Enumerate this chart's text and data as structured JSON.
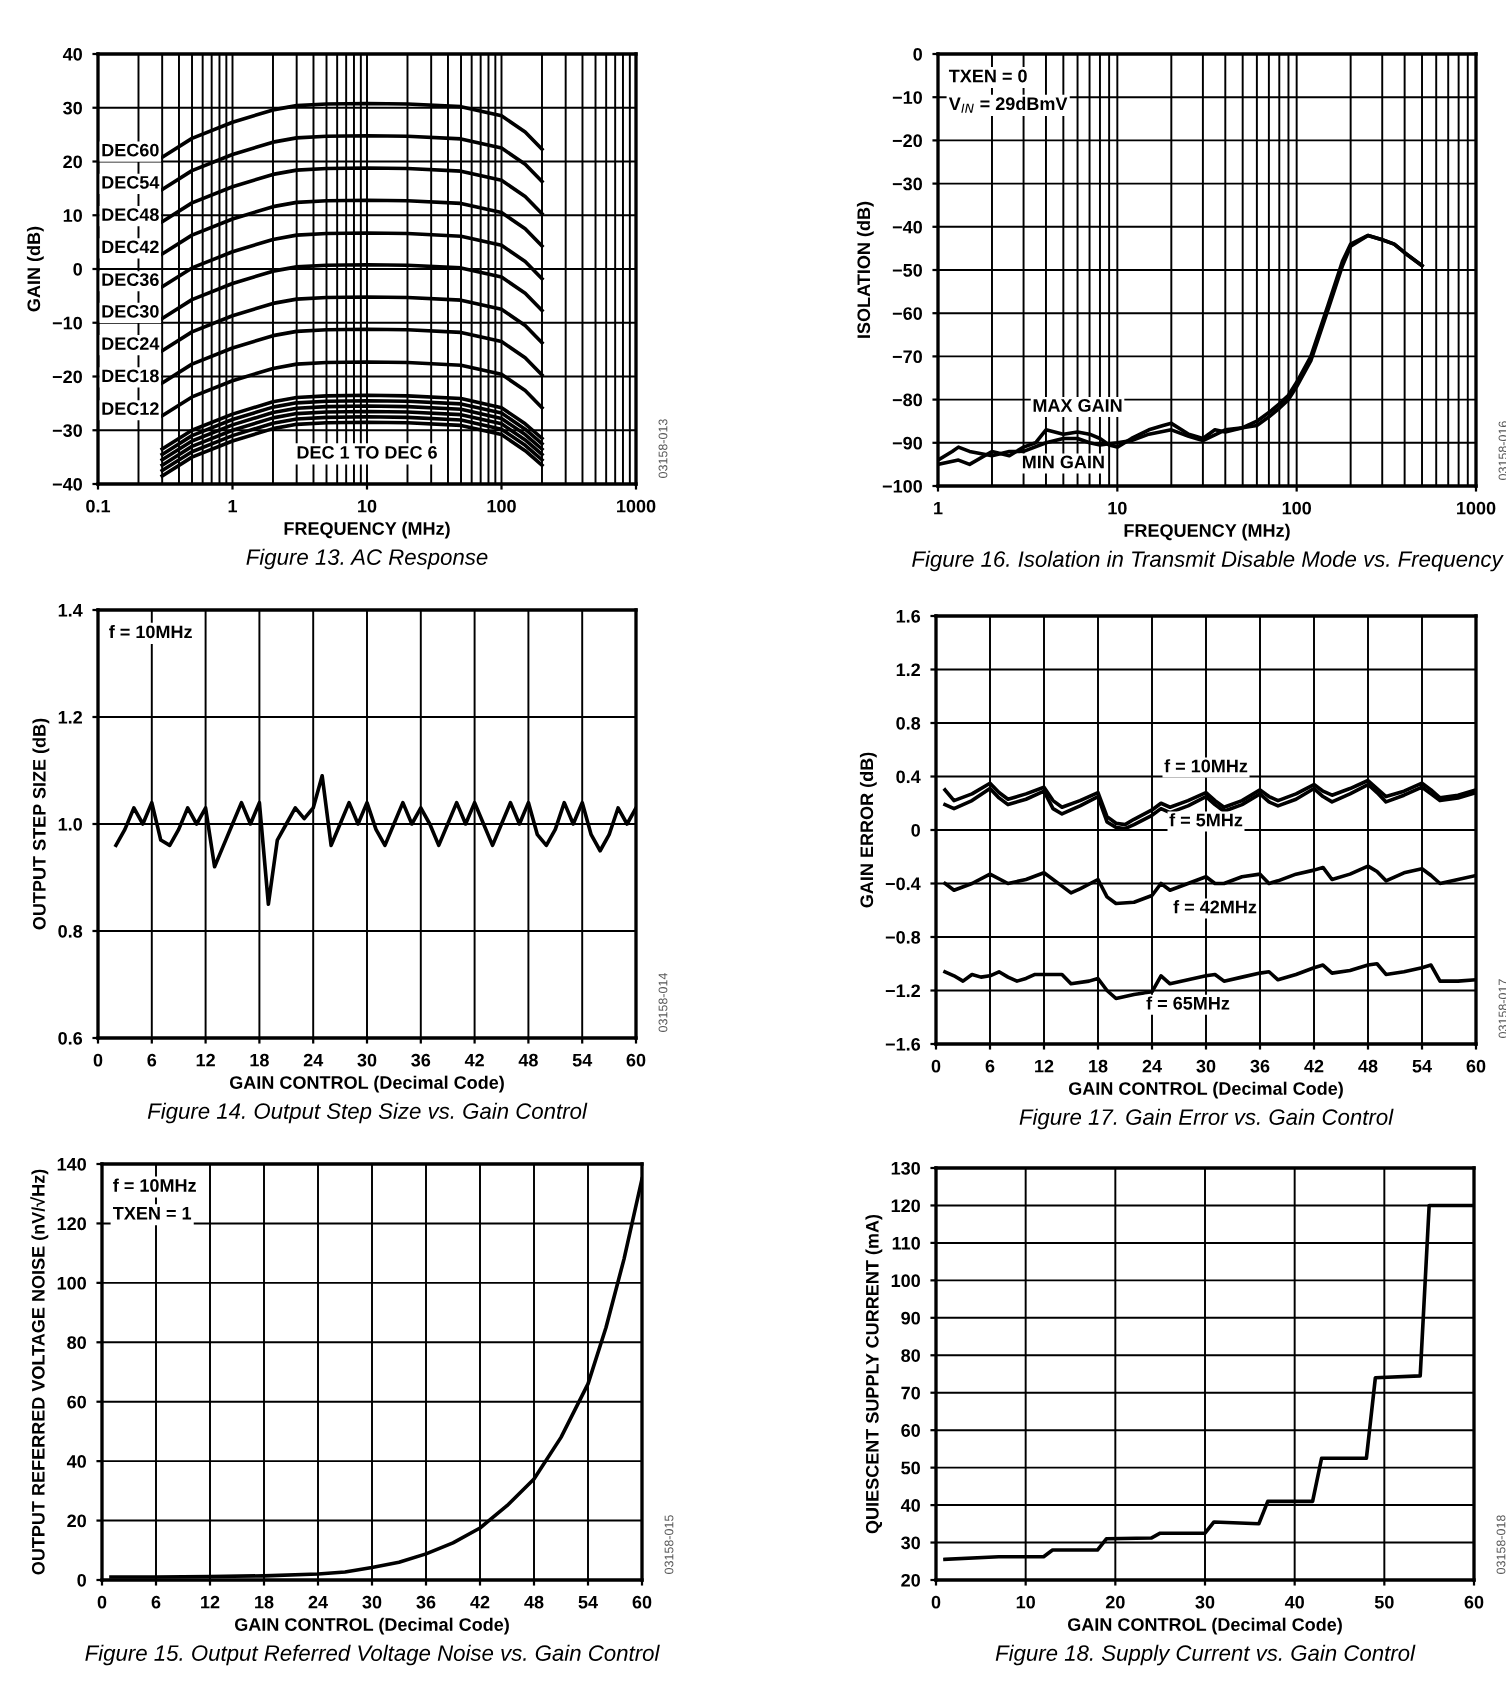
{
  "chart_data": [
    {
      "type": "line",
      "xlabel": "FREQUENCY (MHz)",
      "ylabel": "GAIN (dB)",
      "log": "x",
      "grid": true,
      "xlim": [
        0.1,
        1000
      ],
      "xticks": [
        0.1,
        1,
        10,
        100,
        1000
      ],
      "ylim": [
        -40,
        40
      ],
      "yticks": [
        {
          "value": -40,
          "label": "−40"
        },
        {
          "value": -30,
          "label": "−30"
        },
        {
          "value": -20,
          "label": "−20"
        },
        {
          "value": -10,
          "label": "−10"
        },
        0,
        10,
        20,
        30,
        40
      ],
      "x": [
        0.3,
        0.5,
        1,
        2,
        3,
        5,
        10,
        20,
        50,
        100,
        150,
        200
      ],
      "series": [
        {
          "name": "DEC60",
          "color": "#000000",
          "values": [
            20.8,
            24.3,
            27.3,
            29.6,
            30.4,
            30.7,
            30.8,
            30.7,
            30.2,
            28.5,
            25.5,
            22.3
          ]
        },
        {
          "name": "DEC54",
          "color": "#000000",
          "values": [
            14.8,
            18.3,
            21.3,
            23.6,
            24.4,
            24.7,
            24.8,
            24.7,
            24.2,
            22.5,
            19.5,
            16.3
          ]
        },
        {
          "name": "DEC48",
          "color": "#000000",
          "values": [
            8.8,
            12.3,
            15.3,
            17.6,
            18.4,
            18.7,
            18.8,
            18.7,
            18.2,
            16.5,
            13.5,
            10.3
          ]
        },
        {
          "name": "DEC42",
          "color": "#000000",
          "values": [
            2.8,
            6.3,
            9.3,
            11.6,
            12.4,
            12.7,
            12.8,
            12.7,
            12.2,
            10.5,
            7.5,
            4.3
          ]
        },
        {
          "name": "DEC36",
          "color": "#000000",
          "values": [
            -3.3,
            0.2,
            3.2,
            5.5,
            6.3,
            6.6,
            6.7,
            6.6,
            6.1,
            4.4,
            1.4,
            -1.8
          ]
        },
        {
          "name": "DEC30",
          "color": "#000000",
          "values": [
            -9.2,
            -5.7,
            -2.7,
            -0.4,
            0.4,
            0.7,
            0.8,
            0.7,
            0.2,
            -1.5,
            -4.5,
            -7.7
          ]
        },
        {
          "name": "DEC24",
          "color": "#000000",
          "values": [
            -15.2,
            -11.7,
            -8.7,
            -6.4,
            -5.6,
            -5.3,
            -5.2,
            -5.3,
            -5.8,
            -7.5,
            -10.5,
            -13.7
          ]
        },
        {
          "name": "DEC18",
          "color": "#000000",
          "values": [
            -21.2,
            -17.7,
            -14.7,
            -12.4,
            -11.6,
            -11.3,
            -11.2,
            -11.3,
            -11.8,
            -13.5,
            -16.5,
            -19.7
          ]
        },
        {
          "name": "DEC12",
          "color": "#000000",
          "values": [
            -27.3,
            -23.8,
            -20.8,
            -18.5,
            -17.7,
            -17.4,
            -17.3,
            -17.4,
            -17.9,
            -19.6,
            -22.6,
            -25.8
          ]
        },
        {
          "color": "#000000",
          "values": [
            -33.5,
            -30,
            -27,
            -24.7,
            -23.9,
            -23.6,
            -23.5,
            -23.6,
            -24.1,
            -25.8,
            -28.8,
            -31.5
          ]
        },
        {
          "color": "#000000",
          "values": [
            -34.5,
            -31,
            -28,
            -25.7,
            -24.9,
            -24.6,
            -24.5,
            -24.6,
            -25.1,
            -26.8,
            -29.8,
            -32.5
          ]
        },
        {
          "color": "#000000",
          "values": [
            -35.5,
            -32,
            -29,
            -26.7,
            -25.9,
            -25.6,
            -25.5,
            -25.6,
            -26.1,
            -27.8,
            -30.8,
            -33.5
          ]
        },
        {
          "color": "#000000",
          "values": [
            -36.5,
            -33,
            -30,
            -27.7,
            -26.9,
            -26.6,
            -26.5,
            -26.6,
            -27.1,
            -28.8,
            -31.8,
            -34.5
          ]
        },
        {
          "color": "#000000",
          "values": [
            -37.5,
            -34,
            -31,
            -28.7,
            -27.9,
            -27.6,
            -27.5,
            -27.6,
            -28.1,
            -29.8,
            -32.8,
            -35.5
          ]
        },
        {
          "color": "#000000",
          "values": [
            -38.5,
            -35,
            -32,
            -29.7,
            -28.9,
            -28.6,
            -28.5,
            -28.6,
            -29.1,
            -30.8,
            -33.8,
            -36.5
          ]
        }
      ],
      "annotations": [
        "DEC 1 TO DEC 6",
        "Figure 13. AC Response",
        "03158-013"
      ]
    },
    {
      "type": "line",
      "xlabel": "FREQUENCY (MHz)",
      "ylabel": "ISOLATION (dB)",
      "log": "x",
      "grid": true,
      "xlim": [
        1,
        1000
      ],
      "xticks": [
        1,
        10,
        100,
        1000
      ],
      "ylim": [
        -100,
        0
      ],
      "yticks": [
        {
          "value": -100,
          "label": "−100"
        },
        {
          "value": -90,
          "label": "−90"
        },
        {
          "value": -80,
          "label": "−80"
        },
        {
          "value": -70,
          "label": "−70"
        },
        {
          "value": -60,
          "label": "−60"
        },
        {
          "value": -50,
          "label": "−50"
        },
        {
          "value": -40,
          "label": "−40"
        },
        {
          "value": -30,
          "label": "−30"
        },
        {
          "value": -20,
          "label": "−20"
        },
        {
          "value": -10,
          "label": "−10"
        },
        0
      ],
      "series": [
        {
          "name": "MAX GAIN",
          "color": "#000000",
          "x": [
            1,
            1.3,
            1.5,
            2,
            2.5,
            3,
            3.5,
            4,
            5,
            6,
            7,
            8,
            9,
            10,
            12,
            15,
            18,
            20,
            25,
            30,
            35,
            40,
            50,
            60,
            70,
            80,
            90,
            100,
            120,
            150,
            180,
            200,
            250,
            300,
            350,
            400,
            500
          ],
          "values": [
            -95,
            -94,
            -95,
            -92,
            -93,
            -91,
            -90,
            -87,
            -88,
            -87.5,
            -88,
            -89,
            -90.5,
            -91,
            -89,
            -87,
            -86,
            -85.5,
            -88,
            -89,
            -87,
            -87.5,
            -86.5,
            -85,
            -83,
            -81,
            -79,
            -76,
            -70,
            -58,
            -48,
            -44,
            -42,
            -43,
            -44,
            -46,
            -49
          ]
        },
        {
          "name": "MIN GAIN",
          "color": "#000000",
          "x": [
            1,
            1.2,
            1.3,
            1.5,
            2,
            2.5,
            3,
            4,
            5,
            6,
            7,
            8,
            10,
            12,
            15,
            20,
            25,
            30,
            40,
            50,
            60,
            70,
            80,
            90,
            100,
            120,
            150,
            180,
            200,
            250,
            300,
            350,
            400,
            500
          ],
          "values": [
            -94,
            -92,
            -91,
            -92,
            -93,
            -92,
            -92,
            -90,
            -89,
            -89,
            -90,
            -90.5,
            -90,
            -89.5,
            -88,
            -87,
            -88.5,
            -89.5,
            -87,
            -86.5,
            -86,
            -84,
            -82,
            -80,
            -77,
            -71,
            -59,
            -49,
            -44.5,
            -42,
            -43,
            -44,
            -46,
            -49
          ]
        }
      ],
      "annotations": [
        "TXEN = 0",
        "V$_{IN}$ = 29dBmV",
        "Figure 16. Isolation in Transmit Disable Mode vs. Frequency",
        "03158-016"
      ]
    },
    {
      "type": "line",
      "xlabel": "GAIN CONTROL (Decimal Code)",
      "ylabel": "OUTPUT STEP SIZE (dB)",
      "grid": true,
      "xlim": [
        0,
        60
      ],
      "xticks": [
        0,
        6,
        12,
        18,
        24,
        30,
        36,
        42,
        48,
        54,
        60
      ],
      "ylim": [
        0.6,
        1.4
      ],
      "yticks": [
        0.6,
        0.8,
        {
          "value": 1.0,
          "label": "1.0"
        },
        1.2,
        1.4
      ],
      "x": [
        2,
        3,
        4,
        5,
        6,
        7,
        8,
        9,
        10,
        11,
        12,
        13,
        14,
        15,
        16,
        17,
        18,
        19,
        20,
        21,
        22,
        23,
        24,
        25,
        26,
        27,
        28,
        29,
        30,
        31,
        32,
        33,
        34,
        35,
        36,
        37,
        38,
        39,
        40,
        41,
        42,
        43,
        44,
        45,
        46,
        47,
        48,
        49,
        50,
        51,
        52,
        53,
        54,
        55,
        56,
        57,
        58,
        59,
        60
      ],
      "series": [
        {
          "color": "#000000",
          "values": [
            0.96,
            0.99,
            1.03,
            1.0,
            1.04,
            0.97,
            0.96,
            0.99,
            1.03,
            1.0,
            1.03,
            0.92,
            0.96,
            1.0,
            1.04,
            1.0,
            1.04,
            0.85,
            0.97,
            1.0,
            1.03,
            1.01,
            1.03,
            1.09,
            0.96,
            1.0,
            1.04,
            1.0,
            1.04,
            0.99,
            0.96,
            1.0,
            1.04,
            1.0,
            1.03,
            1.0,
            0.96,
            1.0,
            1.04,
            1.0,
            1.04,
            1.0,
            0.96,
            1.0,
            1.04,
            1.0,
            1.04,
            0.98,
            0.96,
            0.99,
            1.04,
            1.0,
            1.04,
            0.98,
            0.95,
            0.98,
            1.03,
            1.0,
            1.03
          ]
        }
      ],
      "annotations": [
        "f = 10MHz",
        "Figure 14. Output Step Size vs. Gain Control",
        "03158-014"
      ]
    },
    {
      "type": "line",
      "xlabel": "GAIN CONTROL (Decimal Code)",
      "ylabel": "GAIN ERROR (dB)",
      "grid": true,
      "xlim": [
        0,
        60
      ],
      "xticks": [
        0,
        6,
        12,
        18,
        24,
        30,
        36,
        42,
        48,
        54,
        60
      ],
      "ylim": [
        -1.6,
        1.6
      ],
      "yticks": [
        {
          "value": -1.6,
          "label": "−1.6"
        },
        {
          "value": -1.2,
          "label": "−1.2"
        },
        {
          "value": -0.8,
          "label": "−0.8"
        },
        {
          "value": -0.4,
          "label": "−0.4"
        },
        0,
        0.4,
        0.8,
        1.2,
        1.6
      ],
      "series": [
        {
          "name": "f = 10MHz",
          "color": "#000000",
          "x": [
            1,
            2,
            4,
            6,
            7,
            8,
            10,
            12,
            13,
            14,
            16,
            18,
            19,
            20,
            21,
            22,
            24,
            25,
            26,
            28,
            30,
            31,
            32,
            34,
            36,
            37,
            38,
            40,
            42,
            43,
            44,
            46,
            48,
            49,
            50,
            52,
            54,
            55,
            56,
            58,
            60
          ],
          "values": [
            0.3,
            0.22,
            0.27,
            0.35,
            0.28,
            0.23,
            0.27,
            0.32,
            0.22,
            0.17,
            0.22,
            0.28,
            0.1,
            0.05,
            0.04,
            0.08,
            0.15,
            0.2,
            0.17,
            0.22,
            0.28,
            0.22,
            0.17,
            0.22,
            0.3,
            0.25,
            0.22,
            0.27,
            0.34,
            0.29,
            0.26,
            0.31,
            0.37,
            0.31,
            0.25,
            0.29,
            0.35,
            0.3,
            0.24,
            0.26,
            0.3
          ]
        },
        {
          "name": "f = 5MHz",
          "color": "#000000",
          "x": [
            1,
            2,
            4,
            6,
            7,
            8,
            10,
            12,
            13,
            14,
            16,
            18,
            19,
            20,
            21,
            22,
            24,
            25,
            26,
            28,
            30,
            31,
            32,
            34,
            36,
            37,
            38,
            40,
            42,
            43,
            44,
            46,
            48,
            49,
            50,
            52,
            54,
            55,
            56,
            58,
            60
          ],
          "values": [
            0.19,
            0.16,
            0.22,
            0.31,
            0.24,
            0.19,
            0.23,
            0.29,
            0.16,
            0.12,
            0.18,
            0.25,
            0.06,
            0.02,
            0.01,
            0.04,
            0.11,
            0.16,
            0.13,
            0.18,
            0.25,
            0.19,
            0.14,
            0.19,
            0.27,
            0.21,
            0.18,
            0.23,
            0.31,
            0.25,
            0.21,
            0.27,
            0.34,
            0.28,
            0.21,
            0.26,
            0.32,
            0.27,
            0.22,
            0.24,
            0.28
          ]
        },
        {
          "name": "f = 42MHz",
          "color": "#000000",
          "x": [
            1,
            2,
            4,
            6,
            8,
            10,
            12,
            14,
            15,
            16,
            18,
            19,
            20,
            22,
            24,
            25,
            26,
            28,
            30,
            31,
            32,
            34,
            36,
            37,
            38,
            40,
            42,
            43,
            44,
            46,
            48,
            49,
            50,
            52,
            54,
            55,
            56,
            58,
            60
          ],
          "values": [
            -0.4,
            -0.45,
            -0.4,
            -0.33,
            -0.4,
            -0.37,
            -0.32,
            -0.42,
            -0.47,
            -0.44,
            -0.37,
            -0.5,
            -0.55,
            -0.54,
            -0.49,
            -0.4,
            -0.45,
            -0.4,
            -0.35,
            -0.4,
            -0.4,
            -0.35,
            -0.33,
            -0.4,
            -0.38,
            -0.33,
            -0.3,
            -0.28,
            -0.37,
            -0.33,
            -0.27,
            -0.31,
            -0.38,
            -0.32,
            -0.29,
            -0.34,
            -0.4,
            -0.37,
            -0.34
          ]
        },
        {
          "name": "f = 65MHz",
          "color": "#000000",
          "x": [
            1,
            2,
            3,
            4,
            5,
            6,
            7,
            8,
            9,
            10,
            11,
            14,
            15,
            17,
            18,
            19,
            20,
            22,
            24,
            25,
            26,
            28,
            30,
            31,
            32,
            34,
            36,
            37,
            38,
            40,
            42,
            43,
            44,
            46,
            48,
            49,
            50,
            52,
            54,
            55,
            56,
            58,
            60
          ],
          "values": [
            -1.06,
            -1.09,
            -1.13,
            -1.08,
            -1.1,
            -1.09,
            -1.06,
            -1.1,
            -1.13,
            -1.11,
            -1.08,
            -1.08,
            -1.15,
            -1.13,
            -1.11,
            -1.2,
            -1.26,
            -1.23,
            -1.21,
            -1.09,
            -1.15,
            -1.12,
            -1.09,
            -1.08,
            -1.13,
            -1.1,
            -1.07,
            -1.06,
            -1.12,
            -1.08,
            -1.03,
            -1.01,
            -1.07,
            -1.05,
            -1.01,
            -1.0,
            -1.08,
            -1.06,
            -1.03,
            -1.01,
            -1.13,
            -1.13,
            -1.12
          ]
        }
      ],
      "annotations": [
        "Figure 17. Gain Error vs. Gain Control",
        "03158-017"
      ]
    },
    {
      "type": "line",
      "xlabel": "GAIN CONTROL (Decimal Code)",
      "ylabel": "OUTPUT REFERRED VOLTAGE NOISE (nV/√Hz)",
      "grid": true,
      "xlim": [
        0,
        60
      ],
      "xticks": [
        0,
        6,
        12,
        18,
        24,
        30,
        36,
        42,
        48,
        54,
        60
      ],
      "ylim": [
        0,
        140
      ],
      "yticks": [
        0,
        20,
        40,
        60,
        80,
        100,
        120,
        140
      ],
      "x": [
        1,
        6,
        12,
        18,
        24,
        27,
        30,
        33,
        36,
        39,
        42,
        45,
        48,
        51,
        54,
        56,
        58,
        60
      ],
      "series": [
        {
          "color": "#000000",
          "values": [
            1,
            1,
            1.2,
            1.4,
            2,
            2.7,
            4.2,
            6,
            8.8,
            12.5,
            17.5,
            25,
            34,
            48,
            66,
            85,
            108,
            135
          ]
        }
      ],
      "annotations": [
        "f = 10MHz",
        "TXEN = 1",
        "Figure 15. Output Referred Voltage Noise vs. Gain Control",
        "03158-015"
      ]
    },
    {
      "type": "line",
      "xlabel": "GAIN CONTROL (Decimal Code)",
      "ylabel": "QUIESCENT SUPPLY CURRENT (mA)",
      "grid": true,
      "xlim": [
        0,
        60
      ],
      "xticks": [
        0,
        10,
        20,
        30,
        40,
        50,
        60
      ],
      "ylim": [
        20,
        130
      ],
      "yticks": [
        20,
        30,
        40,
        50,
        60,
        70,
        80,
        90,
        100,
        110,
        120,
        130
      ],
      "x": [
        1,
        7,
        12,
        13,
        18,
        19,
        24,
        25,
        30,
        31,
        36,
        37,
        42,
        43,
        48,
        49,
        54,
        55,
        60
      ],
      "series": [
        {
          "color": "#000000",
          "values": [
            25.5,
            26.2,
            26.2,
            28,
            28,
            31,
            31.2,
            32.5,
            32.5,
            35.5,
            35,
            41,
            41,
            52.5,
            52.5,
            74,
            74.5,
            120,
            120
          ]
        }
      ],
      "annotations": [
        "Figure 18. Supply Current vs. Gain Control",
        "03158-018"
      ]
    }
  ]
}
